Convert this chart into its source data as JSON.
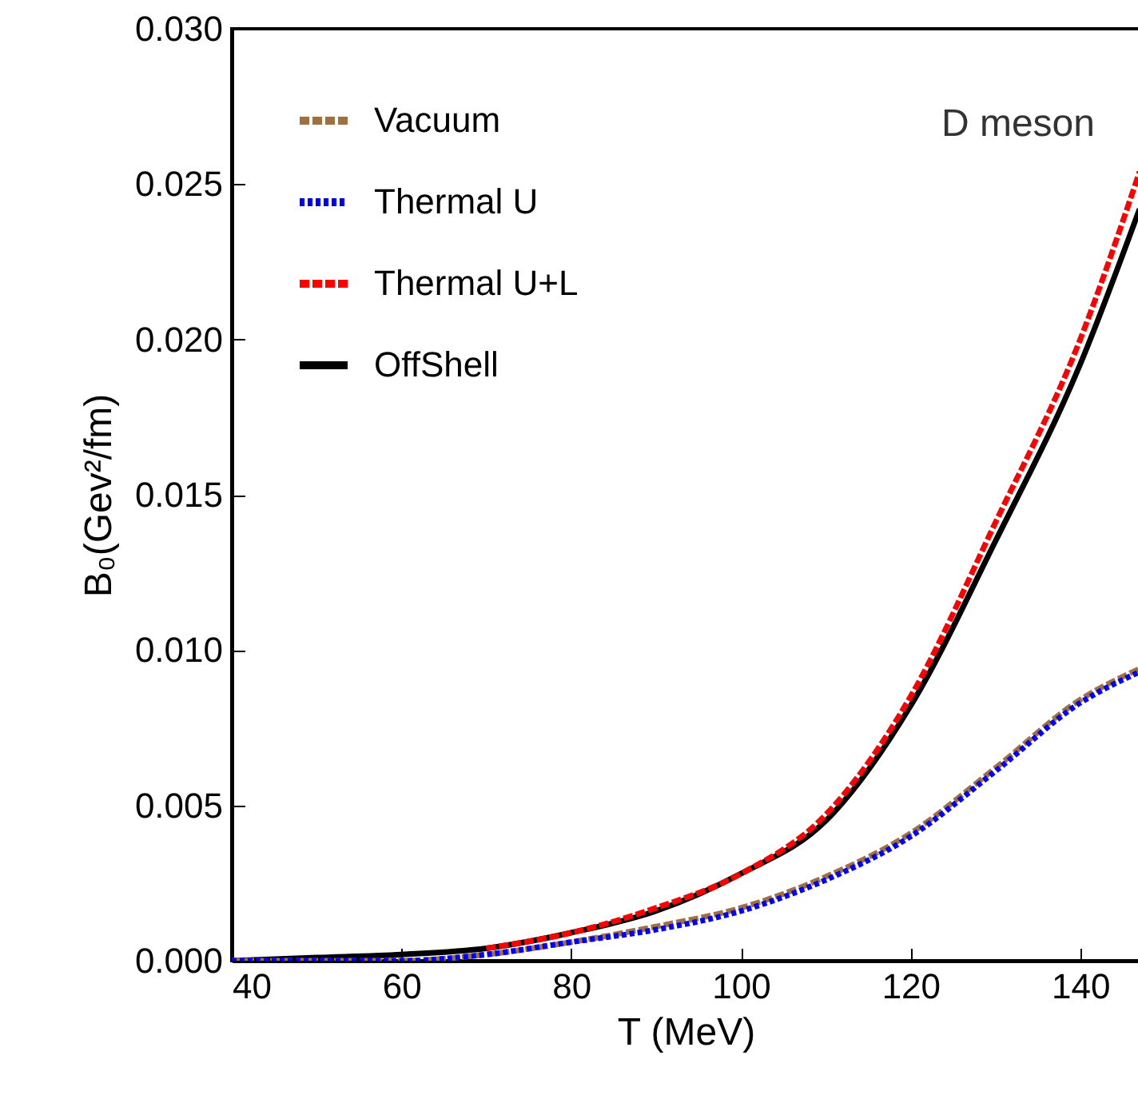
{
  "chart_data": {
    "type": "line",
    "xlabel": "T (MeV)",
    "ylabel": "B₀(Gev²/fm)",
    "annotations": [
      "D meson"
    ],
    "xlim": [
      40,
      147
    ],
    "ylim": [
      0,
      0.03
    ],
    "xticks": [
      40,
      60,
      80,
      100,
      120,
      140
    ],
    "yticks": [
      {
        "value": 0,
        "label": "0.000"
      },
      0.005,
      {
        "value": 0.01,
        "label": "0.010"
      },
      0.015,
      {
        "value": 0.02,
        "label": "0.020"
      },
      0.025,
      {
        "value": 0.03,
        "label": "0.030"
      }
    ],
    "legend": "top left",
    "grid": false,
    "series": [
      {
        "name": "Vacuum",
        "color": "#a0703f",
        "line_style": "dashed",
        "x": [
          40,
          50,
          60,
          70,
          80,
          90,
          100,
          110,
          120,
          130,
          140,
          147
        ],
        "values": [
          0,
          0,
          0,
          0.0002,
          0.0006,
          0.0011,
          0.0017,
          0.0027,
          0.0041,
          0.0062,
          0.0084,
          0.0094
        ]
      },
      {
        "name": "Thermal U",
        "color": "#0000ff",
        "line_style": "dotted",
        "x": [
          40,
          50,
          60,
          70,
          80,
          90,
          100,
          110,
          120,
          130,
          140,
          147
        ],
        "values": [
          0,
          0,
          0,
          0.0002,
          0.0006,
          0.001,
          0.0016,
          0.0026,
          0.004,
          0.0061,
          0.0083,
          0.0093
        ]
      },
      {
        "name": "Thermal U+L",
        "color": "#ff0000",
        "line_style": "dashed",
        "x": [
          70,
          80,
          90,
          100,
          110,
          120,
          130,
          140,
          147
        ],
        "values": [
          0.0004,
          0.0009,
          0.0017,
          0.0028,
          0.0047,
          0.0085,
          0.0141,
          0.02,
          0.0254
        ]
      },
      {
        "name": "OffShell",
        "color": "#000000",
        "line_style": "solid",
        "x": [
          40,
          50,
          60,
          70,
          80,
          90,
          100,
          110,
          120,
          130,
          140,
          147
        ],
        "values": [
          0,
          0.0001,
          0.0002,
          0.0004,
          0.0009,
          0.0016,
          0.0028,
          0.0045,
          0.0082,
          0.0135,
          0.0192,
          0.0242
        ]
      }
    ]
  }
}
